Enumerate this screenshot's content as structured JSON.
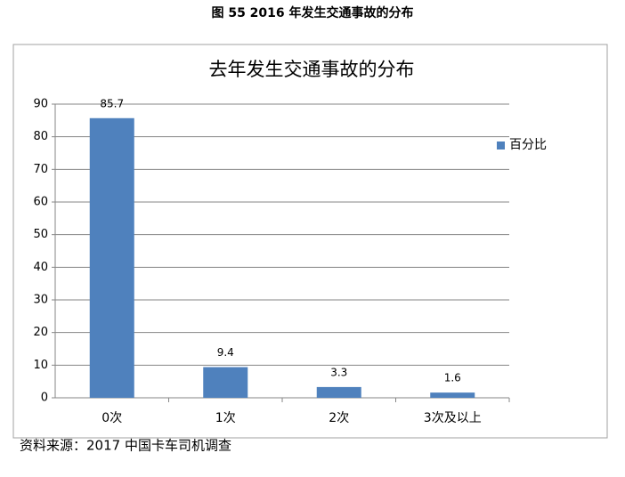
{
  "caption": "图 55 2016  年发生交通事故的分布",
  "source": "资料来源：2017  中国卡车司机调查",
  "chart_data": {
    "type": "bar",
    "title": "去年发生交通事故的分布",
    "categories": [
      "0次",
      "1次",
      "2次",
      "3次及以上"
    ],
    "series": [
      {
        "name": "百分比",
        "color": "#4f81bd",
        "values": [
          85.7,
          9.4,
          3.3,
          1.6
        ]
      }
    ],
    "ylim": [
      0,
      90
    ],
    "yticks": [
      0,
      10,
      20,
      30,
      40,
      50,
      60,
      70,
      80,
      90
    ],
    "grid": true,
    "legend": "right"
  }
}
